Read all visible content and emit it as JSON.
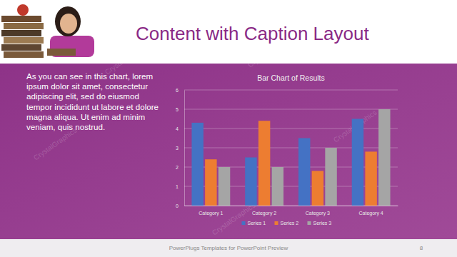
{
  "slide": {
    "title": "Content with Caption Layout",
    "caption": "As you can see in this chart, lorem ipsum dolor sit amet, consectetur adipiscing elit, sed do eiusmod tempor incididunt ut labore et dolore magna aliqua. Ut enim ad minim veniam, quis nostrud.",
    "footer": "PowerPlugs Templates for PowerPoint Preview",
    "page": "8",
    "watermark": "CrystalGraphics"
  },
  "chart_data": {
    "type": "bar",
    "title": "Bar Chart of Results",
    "categories": [
      "Category 1",
      "Category 2",
      "Category 3",
      "Category 4"
    ],
    "series": [
      {
        "name": "Series 1",
        "color": "#4472c4",
        "values": [
          4.3,
          2.5,
          3.5,
          4.5
        ]
      },
      {
        "name": "Series 2",
        "color": "#ed7d31",
        "values": [
          2.4,
          4.4,
          1.8,
          2.8
        ]
      },
      {
        "name": "Series 3",
        "color": "#a5a5a5",
        "values": [
          2,
          2,
          3,
          5
        ]
      }
    ],
    "ylim": [
      0,
      6
    ],
    "yticks": [
      0,
      1,
      2,
      3,
      4,
      5,
      6
    ],
    "grid": true,
    "legend": "bottom"
  }
}
